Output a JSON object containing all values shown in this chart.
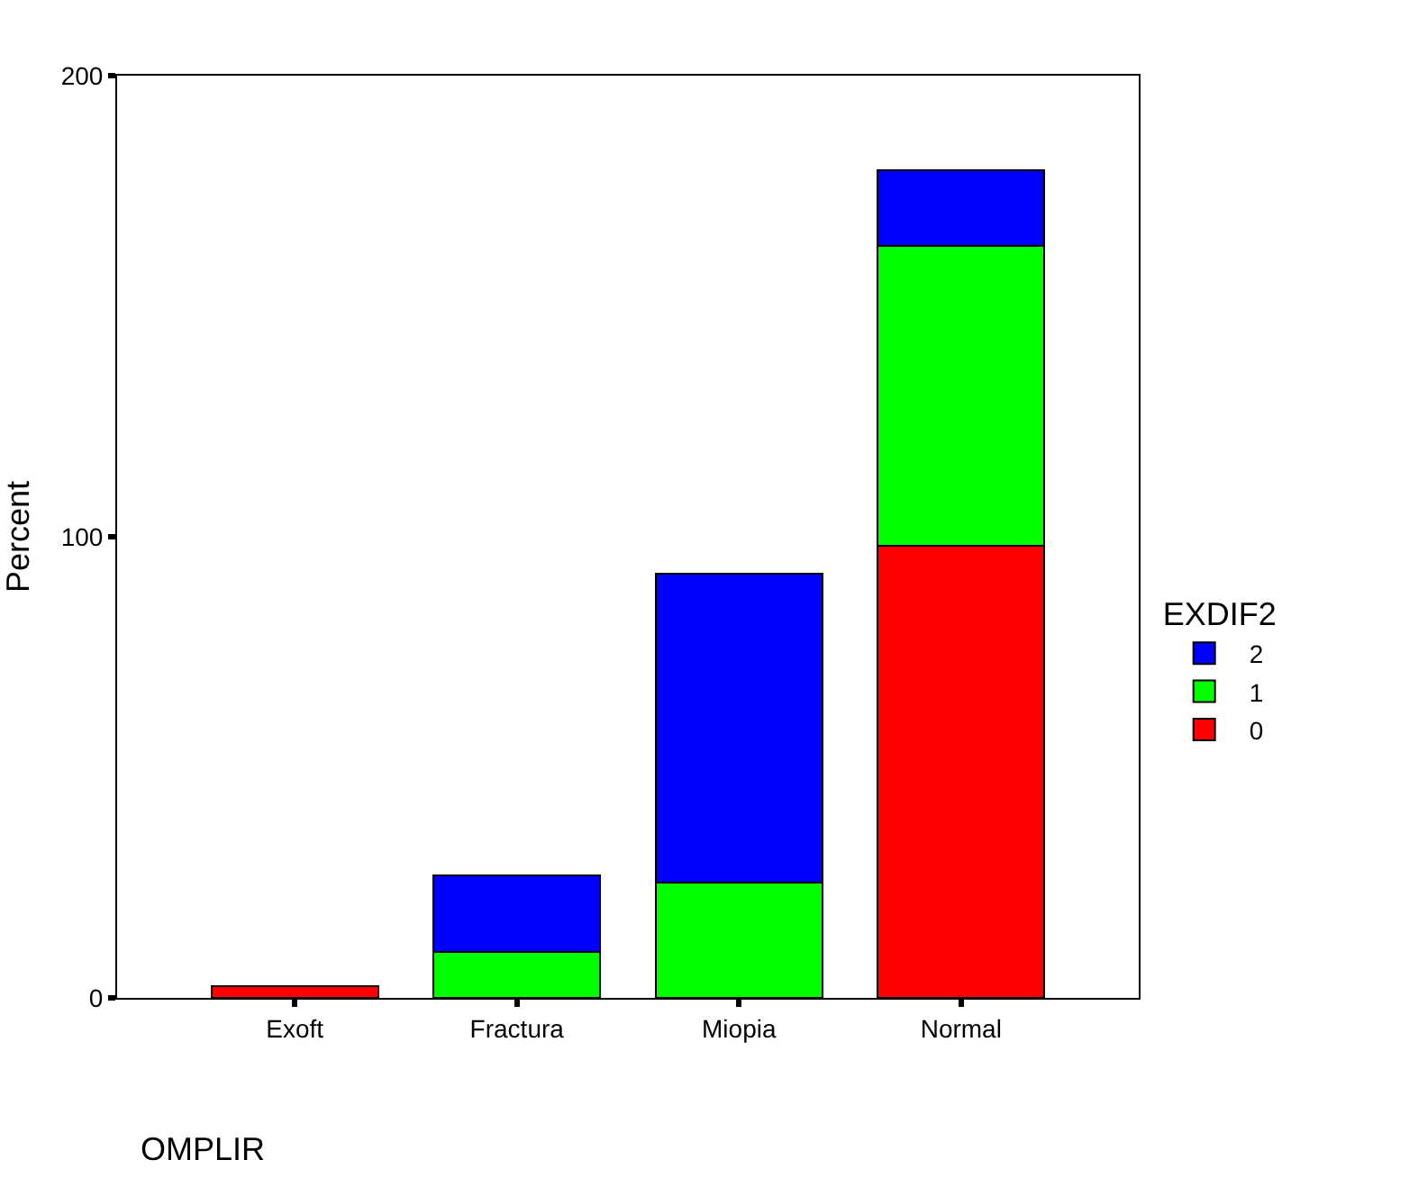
{
  "chart_data": {
    "type": "bar",
    "stacked": true,
    "xlabel": "OMPLIR",
    "ylabel": "Percent",
    "legend_title": "EXDIF2",
    "legend": "right",
    "grid": false,
    "categories": [
      "Exoft",
      "Fractura",
      "Miopia",
      "Normal"
    ],
    "series": [
      {
        "name": "0",
        "color": "#ff0000",
        "values": [
          2.5,
          null,
          null,
          98
        ]
      },
      {
        "name": "1",
        "color": "#00ff00",
        "values": [
          null,
          10,
          25,
          65
        ]
      },
      {
        "name": "2",
        "color": "#0000ff",
        "values": [
          null,
          16.5,
          67,
          16.5
        ]
      }
    ],
    "ylim": [
      0,
      200
    ],
    "yticks": [
      0,
      100,
      200
    ]
  }
}
